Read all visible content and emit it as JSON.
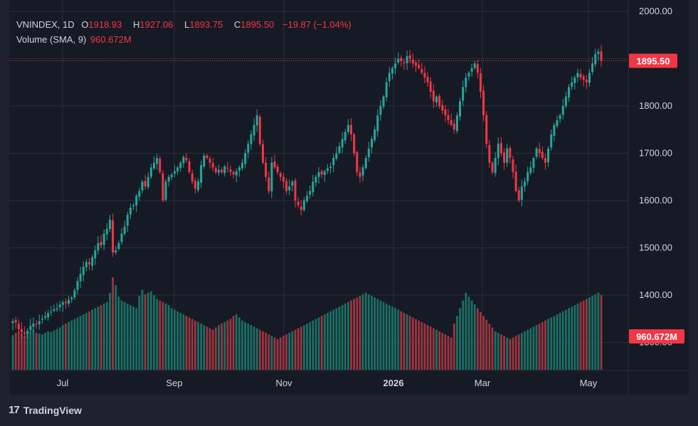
{
  "legend": {
    "symbol": "VNINDEX, 1D",
    "open_label": "O",
    "open": "1918.93",
    "high_label": "H",
    "high": "1927.06",
    "low_label": "L",
    "low": "1893.75",
    "close_label": "C",
    "close": "1895.50",
    "change": "−19.87 (−1.04%)",
    "volume_label": "Volume (SMA, 9)",
    "volume_value": "960.672M"
  },
  "brand": {
    "logo": "17",
    "name": "TradingView"
  },
  "colors": {
    "up": "#26a69a",
    "down": "#f23645",
    "up_volume": "#1b6f63",
    "down_volume": "#9b3540",
    "grid": "#2a2e39",
    "axis_text": "#d1d4dc",
    "background": "#161a25"
  },
  "chart_data": {
    "type": "candlestick",
    "title": "VNINDEX, 1D",
    "last_price_label": "1895.50",
    "volume_label": "960.672M",
    "y_ticks": [
      "2000.00",
      "1900.00",
      "1800.00",
      "1700.00",
      "1600.00",
      "1500.00",
      "1400.00",
      "1300.00"
    ],
    "x_ticks": [
      "Jul",
      "Sep",
      "Nov",
      "2026",
      "Mar",
      "May"
    ],
    "ylim": [
      1262,
      2011
    ],
    "grid": true,
    "legend_position": "top-left",
    "close_series": [
      1345,
      1342,
      1328,
      1322,
      1318,
      1325,
      1335,
      1340,
      1338,
      1345,
      1350,
      1355,
      1362,
      1365,
      1370,
      1372,
      1380,
      1385,
      1383,
      1390,
      1395,
      1410,
      1430,
      1445,
      1460,
      1470,
      1465,
      1480,
      1495,
      1510,
      1505,
      1530,
      1540,
      1560,
      1490,
      1495,
      1510,
      1530,
      1545,
      1570,
      1585,
      1590,
      1610,
      1620,
      1640,
      1630,
      1650,
      1670,
      1680,
      1690,
      1660,
      1600,
      1640,
      1650,
      1655,
      1662,
      1670,
      1680,
      1692,
      1685,
      1660,
      1640,
      1625,
      1640,
      1675,
      1695,
      1690,
      1680,
      1670,
      1660,
      1665,
      1660,
      1672,
      1668,
      1660,
      1655,
      1662,
      1670,
      1680,
      1700,
      1720,
      1740,
      1760,
      1780,
      1720,
      1680,
      1650,
      1620,
      1680,
      1670,
      1660,
      1650,
      1640,
      1620,
      1630,
      1640,
      1600,
      1590,
      1580,
      1600,
      1610,
      1620,
      1640,
      1650,
      1660,
      1655,
      1662,
      1668,
      1672,
      1690,
      1700,
      1715,
      1730,
      1745,
      1760,
      1740,
      1700,
      1660,
      1650,
      1670,
      1690,
      1710,
      1730,
      1750,
      1780,
      1800,
      1820,
      1850,
      1870,
      1880,
      1890,
      1900,
      1895,
      1890,
      1905,
      1900,
      1890,
      1885,
      1880,
      1870,
      1860,
      1850,
      1830,
      1810,
      1820,
      1800,
      1790,
      1780,
      1770,
      1760,
      1750,
      1780,
      1810,
      1840,
      1860,
      1870,
      1880,
      1890,
      1870,
      1830,
      1780,
      1720,
      1680,
      1660,
      1690,
      1720,
      1700,
      1680,
      1710,
      1690,
      1660,
      1620,
      1600,
      1630,
      1640,
      1660,
      1670,
      1690,
      1710,
      1700,
      1690,
      1680,
      1710,
      1740,
      1760,
      1770,
      1780,
      1800,
      1820,
      1840,
      1850,
      1860,
      1870,
      1860,
      1855,
      1850,
      1870,
      1890,
      1910,
      1915,
      1895.5
    ],
    "volume_series": [
      45,
      48,
      50,
      47,
      44,
      46,
      49,
      52,
      48,
      47,
      46,
      48,
      50,
      49,
      51,
      53,
      55,
      58,
      60,
      62,
      64,
      66,
      68,
      70,
      72,
      74,
      76,
      78,
      80,
      82,
      84,
      86,
      88,
      100,
      120,
      110,
      95,
      90,
      88,
      86,
      84,
      82,
      80,
      96,
      104,
      98,
      100,
      102,
      97,
      92,
      90,
      88,
      86,
      84,
      80,
      78,
      76,
      74,
      72,
      70,
      68,
      66,
      64,
      62,
      60,
      58,
      56,
      54,
      52,
      55,
      58,
      60,
      62,
      64,
      66,
      70,
      72,
      68,
      64,
      62,
      60,
      58,
      56,
      54,
      52,
      50,
      48,
      46,
      44,
      42,
      40,
      42,
      44,
      46,
      48,
      50,
      52,
      54,
      56,
      58,
      60,
      62,
      64,
      66,
      68,
      70,
      72,
      74,
      76,
      78,
      80,
      82,
      84,
      86,
      88,
      90,
      92,
      94,
      96,
      98,
      100,
      98,
      96,
      94,
      92,
      90,
      88,
      86,
      84,
      82,
      80,
      78,
      76,
      74,
      72,
      70,
      68,
      66,
      64,
      62,
      60,
      58,
      56,
      54,
      52,
      50,
      48,
      46,
      44,
      42,
      60,
      70,
      80,
      90,
      100,
      95,
      90,
      85,
      80,
      75,
      70,
      65,
      60,
      55,
      50,
      48,
      46,
      44,
      42,
      40,
      42,
      44,
      46,
      48,
      50,
      52,
      54,
      56,
      58,
      60,
      62,
      64,
      66,
      68,
      70,
      72,
      74,
      76,
      78,
      80,
      82,
      84,
      86,
      88,
      90,
      92,
      94,
      96,
      98,
      100,
      97
    ]
  }
}
